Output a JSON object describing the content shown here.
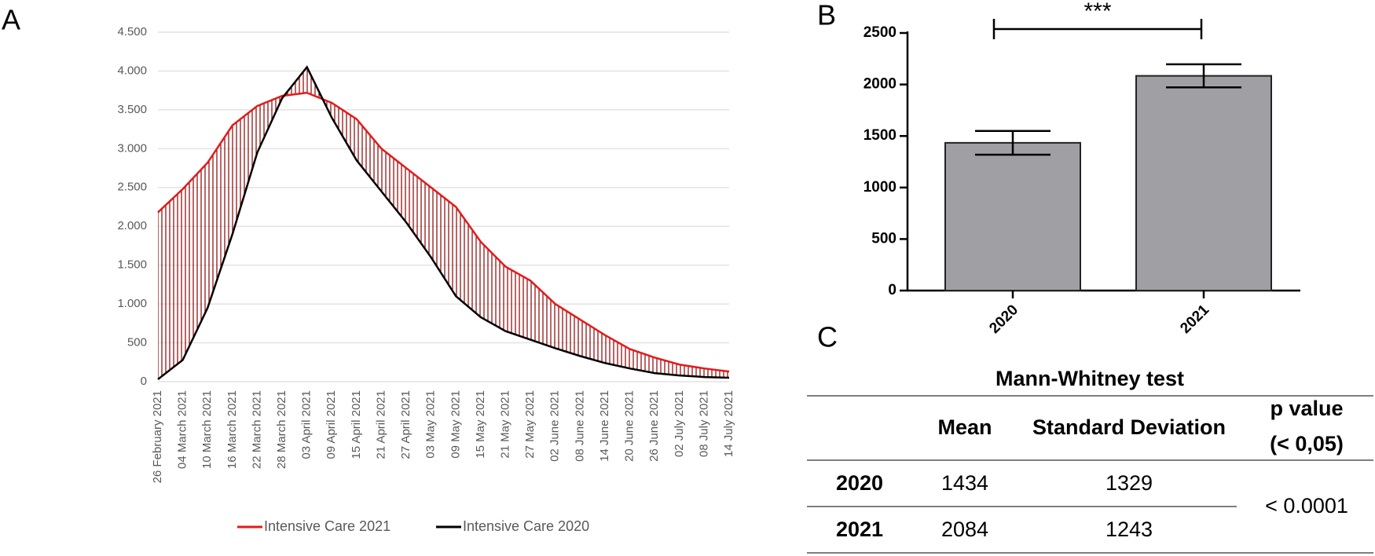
{
  "panel_labels": [
    "A",
    "B",
    "C"
  ],
  "chart_data": [
    {
      "type": "line",
      "categories": [
        "26 February 2021",
        "04 March 2021",
        "10 March 2021",
        "16 March 2021",
        "22 March 2021",
        "28 March 2021",
        "03 April 2021",
        "09 April 2021",
        "15 April 2021",
        "21 April 2021",
        "27 April 2021",
        "03 May 2021",
        "09 May 2021",
        "15 May 2021",
        "21 May 2021",
        "27 May 2021",
        "02 June 2021",
        "08 June 2021",
        "14 June 2021",
        "20 June 2021",
        "26 June 2021",
        "02 July 2021",
        "08 July 2021",
        "14 July 2021"
      ],
      "series": [
        {
          "name": "Intensive Care 2021",
          "color": "#e41a1c",
          "values": [
            2180,
            2480,
            2820,
            3300,
            3550,
            3680,
            3720,
            3590,
            3380,
            3000,
            2750,
            2500,
            2250,
            1800,
            1480,
            1300,
            1000,
            800,
            600,
            420,
            310,
            220,
            170,
            130
          ]
        },
        {
          "name": "Intensive Care 2020",
          "color": "#000000",
          "values": [
            30,
            280,
            950,
            1900,
            2950,
            3650,
            4050,
            3400,
            2850,
            2450,
            2050,
            1600,
            1100,
            830,
            650,
            540,
            430,
            330,
            240,
            170,
            110,
            80,
            60,
            50
          ]
        }
      ],
      "ylim": [
        0,
        4500
      ],
      "yticks": [
        0,
        500,
        {
          "value": 1000,
          "label": "1.000"
        },
        {
          "value": 1500,
          "label": "1.500"
        },
        {
          "value": 2000,
          "label": "2.000"
        },
        {
          "value": 2500,
          "label": "2.500"
        },
        {
          "value": 3000,
          "label": "3.000"
        },
        {
          "value": 3500,
          "label": "3.500"
        },
        {
          "value": 4000,
          "label": "4.000"
        },
        {
          "value": 4500,
          "label": "4.500"
        }
      ],
      "grid": true,
      "legend": "bottom",
      "hatch_color": "#8b0000"
    },
    {
      "type": "bar",
      "categories": [
        "2020",
        "2021"
      ],
      "values": [
        1434,
        2084
      ],
      "errors": [
        115,
        112
      ],
      "color": "#a0a0a4",
      "ylim": [
        0,
        2500
      ],
      "yticks": [
        0,
        500,
        1000,
        1500,
        2000,
        2500
      ],
      "annotation": "***"
    }
  ],
  "table": {
    "title": "Mann-Whitney test",
    "header": [
      "Mean",
      "Standard Deviation",
      [
        "p value",
        "(< 0,05)"
      ]
    ],
    "rows": [
      [
        "2020",
        "1434",
        "1329"
      ],
      [
        "2021",
        "2084",
        "1243"
      ]
    ],
    "p_value": "< 0.0001"
  }
}
